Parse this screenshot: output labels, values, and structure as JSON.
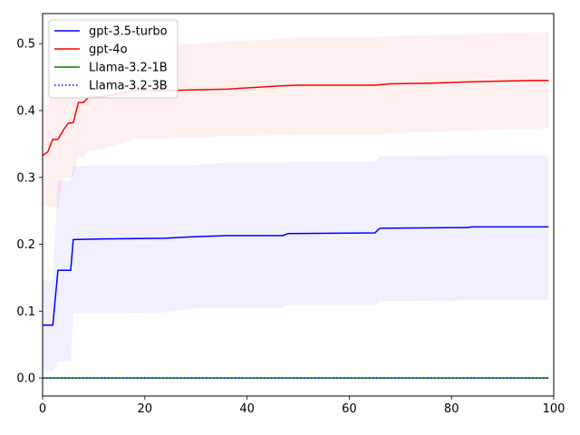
{
  "chart_data": {
    "type": "line",
    "title": "",
    "xlabel": "",
    "ylabel": "",
    "xlim": [
      0,
      100
    ],
    "ylim": [
      -0.027,
      0.545
    ],
    "xticks": [
      0,
      20,
      40,
      60,
      80,
      100
    ],
    "yticks": [
      0.0,
      0.1,
      0.2,
      0.3,
      0.4,
      0.5
    ],
    "xtick_labels": [
      "0",
      "20",
      "40",
      "60",
      "80",
      "100"
    ],
    "ytick_labels": [
      "0.0",
      "0.1",
      "0.2",
      "0.3",
      "0.4",
      "0.5"
    ],
    "grid": false,
    "legend_position": "top-left",
    "series": [
      {
        "name": "gpt-3.5-turbo",
        "color": "#0000ff",
        "linestyle": "solid",
        "x": [
          0,
          2,
          2.5,
          3,
          5.5,
          6,
          12,
          24,
          29,
          36,
          47,
          48,
          65,
          66,
          83,
          84,
          99
        ],
        "y": [
          0.079,
          0.079,
          0.12,
          0.161,
          0.161,
          0.207,
          0.208,
          0.209,
          0.211,
          0.213,
          0.213,
          0.216,
          0.217,
          0.224,
          0.225,
          0.226,
          0.226
        ],
        "band_lower": [
          0.01,
          0.01,
          0.015,
          0.025,
          0.025,
          0.097,
          0.097,
          0.098,
          0.104,
          0.105,
          0.105,
          0.109,
          0.109,
          0.115,
          0.116,
          0.117,
          0.117
        ],
        "band_upper": [
          0.146,
          0.146,
          0.22,
          0.295,
          0.295,
          0.317,
          0.318,
          0.318,
          0.318,
          0.322,
          0.322,
          0.323,
          0.323,
          0.332,
          0.333,
          0.333,
          0.333
        ]
      },
      {
        "name": "gpt-4o",
        "color": "#ff0000",
        "linestyle": "solid",
        "x": [
          0,
          1,
          2,
          3,
          4,
          5,
          6,
          7,
          8,
          9,
          10,
          12,
          18,
          24,
          36,
          47,
          50,
          65,
          68,
          76,
          84,
          96,
          99
        ],
        "y": [
          0.333,
          0.338,
          0.357,
          0.357,
          0.37,
          0.381,
          0.382,
          0.412,
          0.412,
          0.42,
          0.42,
          0.421,
          0.43,
          0.43,
          0.432,
          0.437,
          0.438,
          0.438,
          0.44,
          0.441,
          0.443,
          0.445,
          0.445
        ],
        "band_lower": [
          0.256,
          0.256,
          0.256,
          0.256,
          0.3,
          0.3,
          0.3,
          0.33,
          0.33,
          0.34,
          0.34,
          0.343,
          0.358,
          0.358,
          0.362,
          0.363,
          0.364,
          0.364,
          0.366,
          0.368,
          0.37,
          0.373,
          0.373
        ],
        "band_upper": [
          0.41,
          0.41,
          0.44,
          0.44,
          0.46,
          0.46,
          0.47,
          0.48,
          0.48,
          0.49,
          0.49,
          0.495,
          0.497,
          0.497,
          0.503,
          0.507,
          0.51,
          0.51,
          0.512,
          0.513,
          0.514,
          0.517,
          0.517
        ]
      },
      {
        "name": "Llama-3.2-1B",
        "color": "#008000",
        "linestyle": "solid",
        "x": [
          0,
          99
        ],
        "y": [
          0.0,
          0.0
        ]
      },
      {
        "name": "Llama-3.2-3B",
        "color": "#0000ff",
        "linestyle": "dotted",
        "x": [
          0,
          99
        ],
        "y": [
          0.0,
          0.0
        ]
      }
    ]
  }
}
